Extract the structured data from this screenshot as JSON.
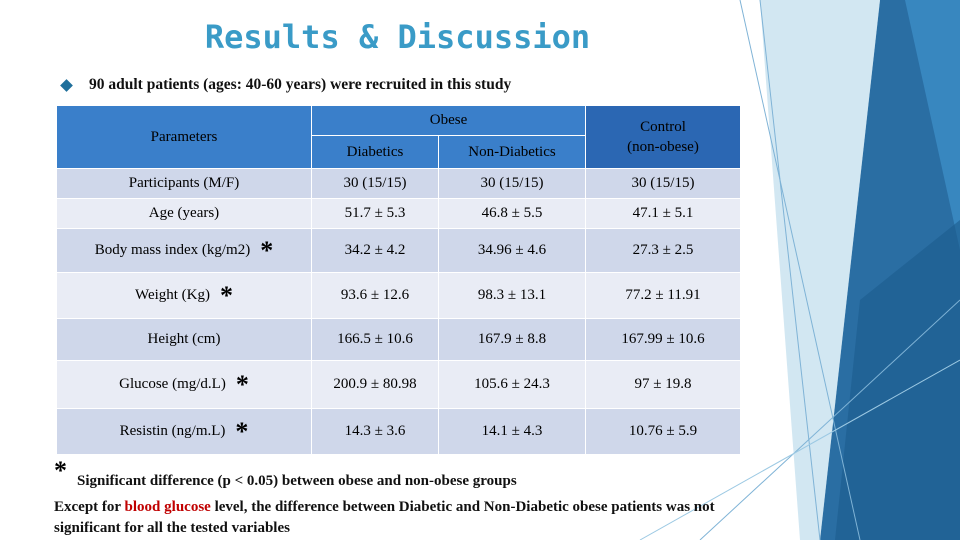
{
  "title": "Results & Discussion",
  "intro_bullet": "90 adult patients (ages: 40-60 years) were recruited in this study",
  "table": {
    "parameters_header": "Parameters",
    "obese_header": "Obese",
    "diabetics_header": "Diabetics",
    "non_diabetics_header": "Non-Diabetics",
    "control_header_line1": "Control",
    "control_header_line2": "(non-obese)",
    "significance_mark": "*",
    "rows": [
      {
        "parameter": "Participants (M/F)",
        "diabetics": "30 (15/15)",
        "non_diabetics": "30 (15/15)",
        "control": "30 (15/15)",
        "significant": false
      },
      {
        "parameter": "Age (years)",
        "diabetics": "51.7 ± 5.3",
        "non_diabetics": "46.8 ± 5.5",
        "control": "47.1 ± 5.1",
        "significant": false
      },
      {
        "parameter": "Body mass index (kg/m2)",
        "diabetics": "34.2 ± 4.2",
        "non_diabetics": "34.96 ± 4.6",
        "control": "27.3 ± 2.5",
        "significant": true
      },
      {
        "parameter": "Weight (Kg)",
        "diabetics": "93.6 ± 12.6",
        "non_diabetics": "98.3 ± 13.1",
        "control": "77.2 ± 11.91",
        "significant": true
      },
      {
        "parameter": "Height (cm)",
        "diabetics": "166.5 ± 10.6",
        "non_diabetics": "167.9 ± 8.8",
        "control": "167.99 ± 10.6",
        "significant": false
      },
      {
        "parameter": "Glucose (mg/d.L)",
        "diabetics": "200.9 ± 80.98",
        "non_diabetics": "105.6 ± 24.3",
        "control": "97 ± 19.8",
        "significant": true
      },
      {
        "parameter": "Resistin (ng/m.L)",
        "diabetics": "14.3 ± 3.6",
        "non_diabetics": "14.1 ± 4.3",
        "control": "10.76 ± 5.9",
        "significant": true
      }
    ]
  },
  "footnote": {
    "mark": "*",
    "text": "Significant difference (p < 0.05) between obese and non-obese groups"
  },
  "conclusion": {
    "part1": "Except for ",
    "highlight": "blood glucose",
    "part2": " level, the difference between Diabetic and Non-Diabetic obese patients was not significant for all the tested variables"
  },
  "colors": {
    "title": "#3a9bc7",
    "header_blue": "#3a7fca",
    "row_dark": "#cfd7ea",
    "row_light": "#e9ecf5",
    "highlight_red": "#c00000",
    "decor_blue": "#2a6ea3"
  }
}
